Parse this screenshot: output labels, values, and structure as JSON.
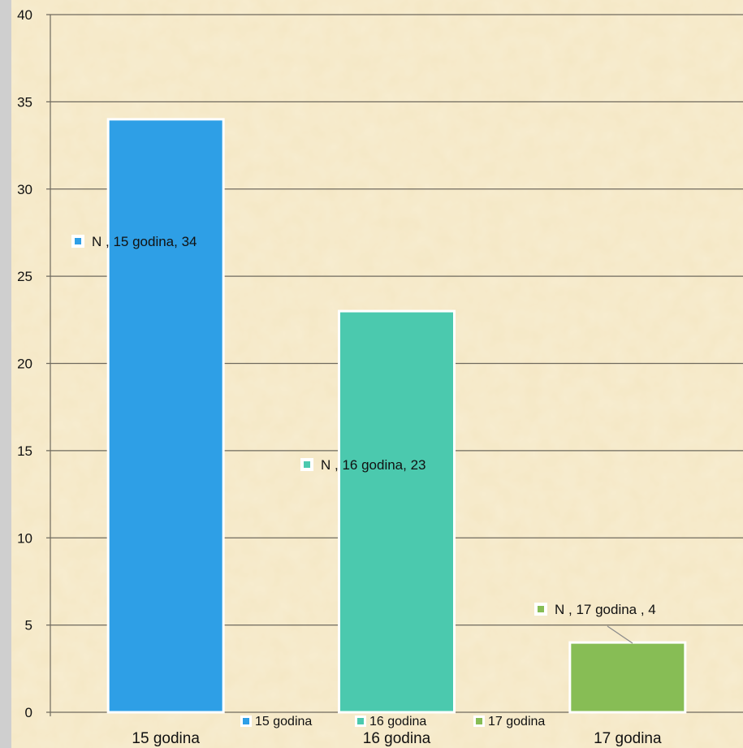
{
  "chart_data": {
    "type": "bar",
    "categories": [
      "15 godina",
      "16 godina",
      "17 godina"
    ],
    "values": [
      34,
      23,
      4
    ],
    "ylim": [
      0,
      40
    ],
    "yticks": [
      0,
      5,
      10,
      15,
      20,
      25,
      30,
      35,
      40
    ],
    "grid": true,
    "colors": [
      "#2e9fe6",
      "#4bc9ae",
      "#87bd55"
    ],
    "data_labels": [
      "N , 15 godina, 34",
      "N , 16 godina, 23",
      "N , 17 godina , 4"
    ],
    "legend": {
      "position": "bottom",
      "entries": [
        "15 godina",
        "16 godina",
        "17 godina"
      ]
    }
  }
}
